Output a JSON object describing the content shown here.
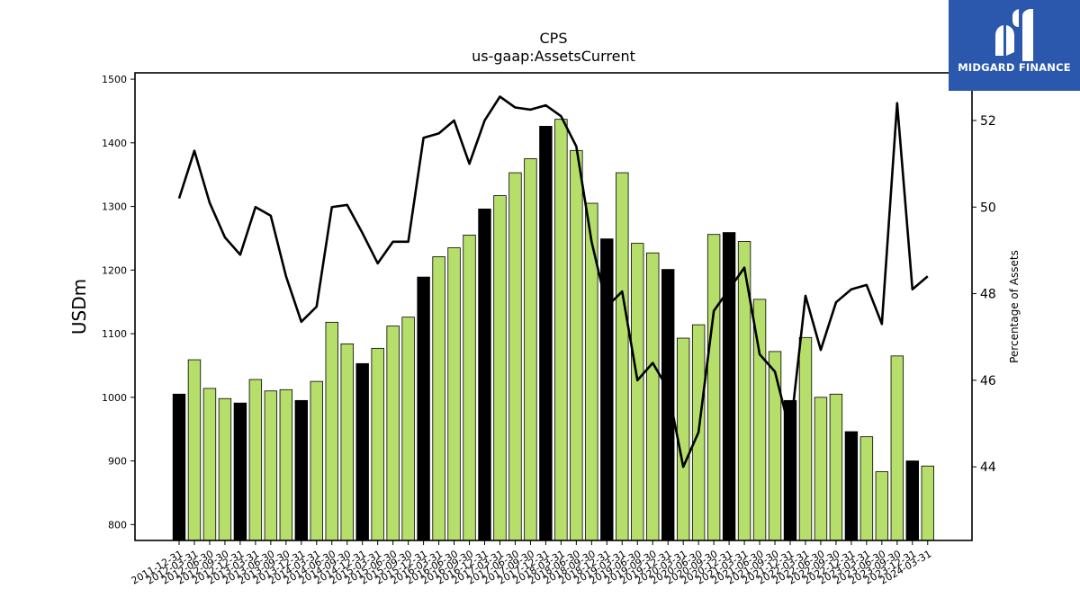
{
  "chart_data": {
    "type": "bar",
    "title": "CPS",
    "subtitle": "us-gaap:AssetsCurrent",
    "ylabel": "USDm",
    "y2label": "Percentage of Assets",
    "ylim": [
      775,
      1510
    ],
    "y2lim": [
      42.3,
      53.1
    ],
    "yticks": [
      800,
      900,
      1000,
      1100,
      1200,
      1300,
      1400,
      1500
    ],
    "y2ticks": [
      44,
      46,
      48,
      50,
      52
    ],
    "colors": {
      "annual_bar": "#000000",
      "quarter_bar": "#b5de6b",
      "line": "#000000",
      "bar_edge": "#000000"
    },
    "categories": [
      "2011-12-31",
      "2012-03-31",
      "2012-06-30",
      "2012-09-30",
      "2012-12-31",
      "2013-03-31",
      "2013-06-30",
      "2013-09-30",
      "2013-12-31",
      "2014-03-31",
      "2014-06-30",
      "2014-09-30",
      "2014-12-31",
      "2015-03-31",
      "2015-06-30",
      "2015-09-30",
      "2015-12-31",
      "2016-03-31",
      "2016-06-30",
      "2016-09-30",
      "2016-12-31",
      "2017-03-31",
      "2017-06-30",
      "2017-09-30",
      "2017-12-31",
      "2018-03-31",
      "2018-06-30",
      "2018-09-30",
      "2018-12-31",
      "2019-03-31",
      "2019-06-30",
      "2019-09-30",
      "2019-12-31",
      "2020-03-31",
      "2020-06-30",
      "2020-09-30",
      "2020-12-31",
      "2021-03-31",
      "2021-06-30",
      "2021-09-30",
      "2021-12-31",
      "2022-03-31",
      "2022-06-30",
      "2022-09-30",
      "2022-12-31",
      "2023-03-31",
      "2023-06-30",
      "2023-09-30",
      "2023-12-31",
      "2024-03-31"
    ],
    "series": [
      {
        "type": "bar",
        "values": [
          1005,
          1059,
          1014,
          998,
          991,
          1028,
          1010,
          1012,
          995,
          1025,
          1118,
          1084,
          1053,
          1077,
          1112,
          1126,
          1189,
          1221,
          1235,
          1255,
          1296,
          1317,
          1353,
          1375,
          1426,
          1437,
          1388,
          1305,
          1249,
          1353,
          1242,
          1227,
          1201,
          1093,
          1114,
          1256,
          1259,
          1245,
          1154,
          1072,
          995,
          1094,
          1000,
          1005,
          946,
          938,
          883,
          1065,
          900,
          892
        ]
      },
      {
        "type": "line",
        "axis": "right",
        "values": [
          50.2,
          51.3,
          50.1,
          49.3,
          48.9,
          50.0,
          49.8,
          48.4,
          47.35,
          47.7,
          50.0,
          50.05,
          49.4,
          48.7,
          49.2,
          49.2,
          51.6,
          51.7,
          52.0,
          51.0,
          52.0,
          52.55,
          52.3,
          52.25,
          52.35,
          52.1,
          51.4,
          49.2,
          47.7,
          48.05,
          46.0,
          46.4,
          45.8,
          44.0,
          44.8,
          47.6,
          48.1,
          48.6,
          46.6,
          46.2,
          44.8,
          47.95,
          46.7,
          47.8,
          48.1,
          48.2,
          47.3,
          52.4,
          48.1,
          48.4
        ]
      }
    ],
    "grid": false,
    "legend": "none"
  },
  "logo": {
    "name": "MIDGARD FINANCE",
    "color": "#2b58ad",
    "icon": "midgard-logo-icon"
  }
}
